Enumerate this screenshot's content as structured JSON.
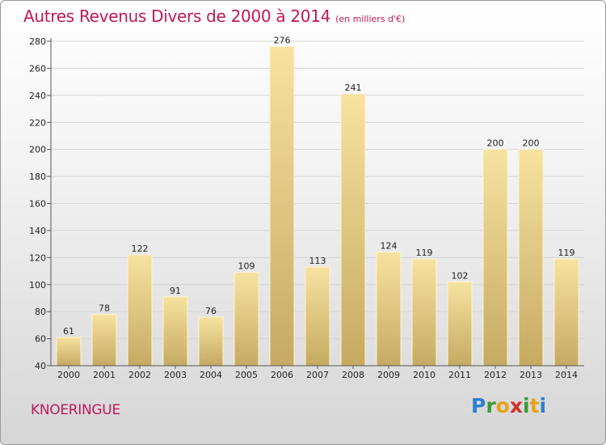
{
  "chart_data": {
    "type": "bar",
    "title": "Autres Revenus Divers de 2000 à 2014",
    "subtitle": "(en milliers d'€)",
    "categories": [
      "2000",
      "2001",
      "2002",
      "2003",
      "2004",
      "2005",
      "2006",
      "2007",
      "2008",
      "2009",
      "2010",
      "2011",
      "2012",
      "2013",
      "2014"
    ],
    "values": [
      61,
      78,
      122,
      91,
      76,
      109,
      276,
      113,
      241,
      124,
      119,
      102,
      200,
      200,
      119
    ],
    "ylim": [
      40,
      280
    ],
    "yticks": [
      40,
      60,
      80,
      100,
      120,
      140,
      160,
      180,
      200,
      220,
      240,
      260,
      280
    ],
    "grid": true,
    "bar_color": "#ecd48e",
    "bar_color_dark": "#c8ad66"
  },
  "footer": {
    "commune": "KNOERINGUE",
    "logo_text": "Proxiti"
  },
  "colors": {
    "title": "#c0185a",
    "logo": [
      "#2f7fcf",
      "#3a9a3a",
      "#e8a21a",
      "#d4302a",
      "#3a9a3a",
      "#e8a21a",
      "#2f7fcf"
    ]
  }
}
